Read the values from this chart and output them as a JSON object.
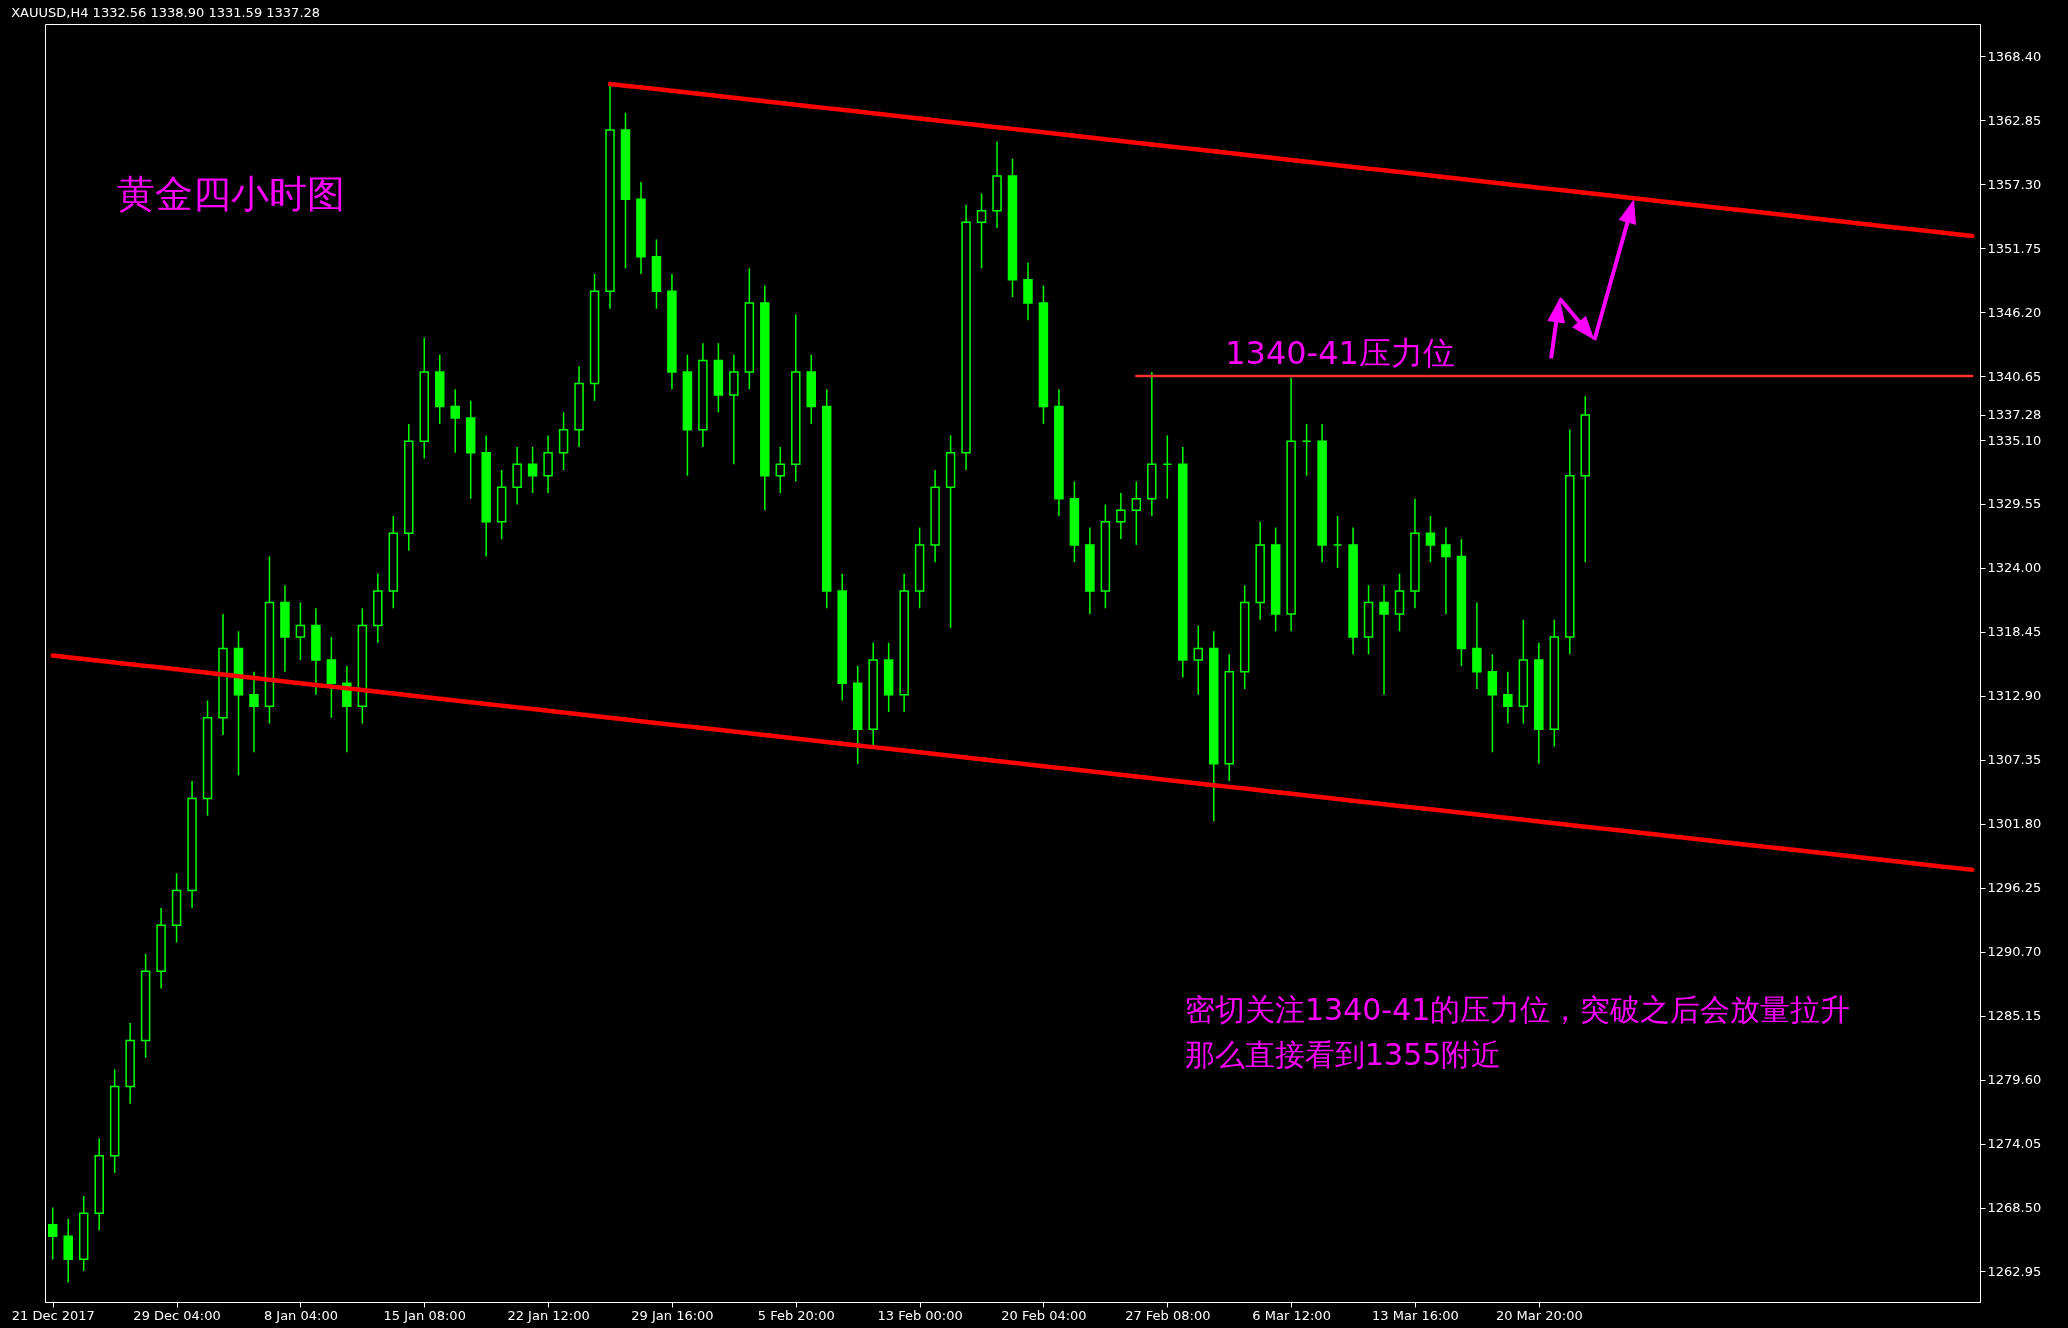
{
  "chart_data": {
    "type": "candlestick",
    "title": "XAUUSD,H4  1332.56 1338.90 1331.59 1337.28",
    "categories": [
      "21 Dec 2017",
      null,
      null,
      null,
      null,
      null,
      null,
      null,
      "29 Dec 04:00",
      null,
      null,
      null,
      null,
      null,
      null,
      null,
      "8 Jan 04:00",
      null,
      null,
      null,
      null,
      null,
      null,
      null,
      "15 Jan 08:00",
      null,
      null,
      null,
      null,
      null,
      null,
      null,
      "22 Jan 12:00",
      null,
      null,
      null,
      null,
      null,
      null,
      null,
      "29 Jan 16:00",
      null,
      null,
      null,
      null,
      null,
      null,
      null,
      "5 Feb 20:00",
      null,
      null,
      null,
      null,
      null,
      null,
      null,
      "13 Feb 00:00",
      null,
      null,
      null,
      null,
      null,
      null,
      null,
      "20 Feb 04:00",
      null,
      null,
      null,
      null,
      null,
      null,
      null,
      "27 Feb 08:00",
      null,
      null,
      null,
      null,
      null,
      null,
      null,
      "6 Mar 12:00",
      null,
      null,
      null,
      null,
      null,
      null,
      null,
      "13 Mar 16:00",
      null,
      null,
      null,
      null,
      null,
      null,
      null,
      "20 Mar 20:00",
      null,
      null,
      null,
      null,
      null,
      null,
      null,
      null,
      null,
      null,
      null,
      null,
      null,
      null,
      null,
      null,
      null,
      null,
      null,
      null,
      null,
      null,
      null,
      null,
      null,
      null,
      null,
      null
    ],
    "ylim": [
      1260.3,
      1371.2
    ],
    "yticks": [
      {
        "value": 1368.4,
        "label": "1368.40"
      },
      {
        "value": 1362.85,
        "label": "1362.85"
      },
      {
        "value": 1357.3,
        "label": "1357.30"
      },
      {
        "value": 1351.75,
        "label": "1351.75"
      },
      {
        "value": 1346.2,
        "label": "1346.20"
      },
      {
        "value": 1340.65,
        "label": "1340.65"
      },
      {
        "value": 1337.28,
        "label": "1337.28"
      },
      {
        "value": 1335.1,
        "label": "1335.10"
      },
      {
        "value": 1329.55,
        "label": "1329.55"
      },
      {
        "value": 1324,
        "label": "1324.00"
      },
      {
        "value": 1318.45,
        "label": "1318.45"
      },
      {
        "value": 1312.9,
        "label": "1312.90"
      },
      {
        "value": 1307.35,
        "label": "1307.35"
      },
      {
        "value": 1301.8,
        "label": "1301.80"
      },
      {
        "value": 1296.25,
        "label": "1296.25"
      },
      {
        "value": 1290.7,
        "label": "1290.70"
      },
      {
        "value": 1285.15,
        "label": "1285.15"
      },
      {
        "value": 1279.6,
        "label": "1279.60"
      },
      {
        "value": 1274.05,
        "label": "1274.05"
      },
      {
        "value": 1268.5,
        "label": "1268.50"
      },
      {
        "value": 1262.95,
        "label": "1262.95"
      }
    ],
    "series": [
      {
        "color": "#00ff00",
        "ohlc": [
          [
            1267,
            1268.5,
            1264,
            1266
          ],
          [
            1266,
            1267.5,
            1262,
            1264
          ],
          [
            1264,
            1269.5,
            1263,
            1268
          ],
          [
            1268,
            1274.5,
            1266.5,
            1273
          ],
          [
            1273,
            1280.5,
            1271.5,
            1279
          ],
          [
            1279,
            1284.5,
            1277.5,
            1283
          ],
          [
            1283,
            1290.5,
            1281.5,
            1289
          ],
          [
            1289,
            1294.5,
            1287.5,
            1293
          ],
          [
            1293,
            1297.5,
            1291.5,
            1296
          ],
          [
            1296,
            1305.5,
            1294.5,
            1304
          ],
          [
            1304,
            1312.5,
            1302.5,
            1311
          ],
          [
            1311,
            1320,
            1309.5,
            1317
          ],
          [
            1317,
            1318.5,
            1306,
            1313
          ],
          [
            1313,
            1315,
            1308,
            1312
          ],
          [
            1312,
            1325,
            1310.5,
            1321
          ],
          [
            1321,
            1322.5,
            1315,
            1318
          ],
          [
            1318,
            1321,
            1316,
            1319
          ],
          [
            1319,
            1320.5,
            1313,
            1316
          ],
          [
            1316,
            1318,
            1311,
            1314
          ],
          [
            1314,
            1315.5,
            1308,
            1312
          ],
          [
            1312,
            1320.5,
            1310.5,
            1319
          ],
          [
            1319,
            1323.5,
            1317.5,
            1322
          ],
          [
            1322,
            1328.5,
            1320.5,
            1327
          ],
          [
            1327,
            1336.5,
            1325.5,
            1335
          ],
          [
            1335,
            1344,
            1333.5,
            1341
          ],
          [
            1341,
            1342.5,
            1336.5,
            1338
          ],
          [
            1338,
            1339.5,
            1334,
            1337
          ],
          [
            1337,
            1338.5,
            1330,
            1334
          ],
          [
            1334,
            1335.5,
            1325,
            1328
          ],
          [
            1328,
            1332.5,
            1326.5,
            1331
          ],
          [
            1331,
            1334.5,
            1329.5,
            1333
          ],
          [
            1333,
            1334.5,
            1330.5,
            1332
          ],
          [
            1332,
            1335.5,
            1330.5,
            1334
          ],
          [
            1334,
            1337.5,
            1332.5,
            1336
          ],
          [
            1336,
            1341.5,
            1334.5,
            1340
          ],
          [
            1340,
            1349.5,
            1338.5,
            1348
          ],
          [
            1348,
            1366,
            1346.5,
            1362
          ],
          [
            1362,
            1363.5,
            1350,
            1356
          ],
          [
            1356,
            1357.5,
            1349.5,
            1351
          ],
          [
            1351,
            1352.5,
            1346.5,
            1348
          ],
          [
            1348,
            1349.5,
            1339.5,
            1341
          ],
          [
            1341,
            1342.5,
            1332,
            1336
          ],
          [
            1336,
            1343.5,
            1334.5,
            1342
          ],
          [
            1342,
            1343.5,
            1337.5,
            1339
          ],
          [
            1339,
            1342.5,
            1333,
            1341
          ],
          [
            1341,
            1350,
            1339.5,
            1347
          ],
          [
            1347,
            1348.5,
            1329,
            1332
          ],
          [
            1332,
            1334.5,
            1330.5,
            1333
          ],
          [
            1333,
            1346,
            1331.5,
            1341
          ],
          [
            1341,
            1342.5,
            1336.5,
            1338
          ],
          [
            1338,
            1339.5,
            1320.5,
            1322
          ],
          [
            1322,
            1323.5,
            1312.5,
            1314
          ],
          [
            1314,
            1315.5,
            1307,
            1310
          ],
          [
            1310,
            1317.5,
            1308.5,
            1316
          ],
          [
            1316,
            1317.5,
            1311.5,
            1313
          ],
          [
            1313,
            1323.5,
            1311.5,
            1322
          ],
          [
            1322,
            1327.5,
            1320.5,
            1326
          ],
          [
            1326,
            1332.5,
            1324.5,
            1331
          ],
          [
            1331,
            1335.5,
            1318.8,
            1334
          ],
          [
            1334,
            1355.5,
            1332.5,
            1354
          ],
          [
            1354,
            1356.5,
            1350,
            1355
          ],
          [
            1355,
            1361,
            1353.5,
            1358
          ],
          [
            1358,
            1359.5,
            1347.5,
            1349
          ],
          [
            1349,
            1350.5,
            1345.5,
            1347
          ],
          [
            1347,
            1348.5,
            1336.5,
            1338
          ],
          [
            1338,
            1339.5,
            1328.5,
            1330
          ],
          [
            1330,
            1331.5,
            1324.5,
            1326
          ],
          [
            1326,
            1327.5,
            1320,
            1322
          ],
          [
            1322,
            1329.5,
            1320.5,
            1328
          ],
          [
            1328,
            1330.5,
            1326.5,
            1329
          ],
          [
            1329,
            1331.5,
            1326,
            1330
          ],
          [
            1330,
            1341,
            1328.5,
            1333
          ],
          [
            1333,
            1335.5,
            1330,
            1333
          ],
          [
            1333,
            1334.5,
            1314.5,
            1316
          ],
          [
            1316,
            1319,
            1313,
            1317
          ],
          [
            1317,
            1318.5,
            1302,
            1307
          ],
          [
            1307,
            1316.5,
            1305.5,
            1315
          ],
          [
            1315,
            1322.5,
            1313.5,
            1321
          ],
          [
            1321,
            1328,
            1319.5,
            1326
          ],
          [
            1326,
            1327.5,
            1318.5,
            1320
          ],
          [
            1320,
            1340.5,
            1318.5,
            1335
          ],
          [
            1335,
            1336.5,
            1332,
            1335
          ],
          [
            1335,
            1336.5,
            1324.5,
            1326
          ],
          [
            1326,
            1328.5,
            1324,
            1326
          ],
          [
            1326,
            1327.5,
            1316.5,
            1318
          ],
          [
            1318,
            1322.5,
            1316.5,
            1321
          ],
          [
            1321,
            1322.5,
            1313,
            1320
          ],
          [
            1320,
            1323.5,
            1318.5,
            1322
          ],
          [
            1322,
            1330,
            1320.5,
            1327
          ],
          [
            1327,
            1328.5,
            1324.5,
            1326
          ],
          [
            1326,
            1327.5,
            1320,
            1325
          ],
          [
            1325,
            1326.5,
            1315.5,
            1317
          ],
          [
            1317,
            1321,
            1313.5,
            1315
          ],
          [
            1315,
            1316.5,
            1308,
            1313
          ],
          [
            1313,
            1315,
            1310.5,
            1312
          ],
          [
            1312,
            1319.5,
            1310.5,
            1316
          ],
          [
            1316,
            1317.5,
            1307,
            1310
          ],
          [
            1310,
            1319.5,
            1308.5,
            1318
          ],
          [
            1318,
            1336,
            1316.5,
            1332
          ],
          [
            1332,
            1338.9,
            1324.5,
            1337.28
          ],
          null,
          null,
          null,
          null,
          null,
          null,
          null,
          null,
          null,
          null,
          null,
          null,
          null,
          null,
          null,
          null,
          null,
          null,
          null,
          null,
          null,
          null,
          null,
          null,
          null
        ]
      },
      {
        "type": "line",
        "color": "#ff0000",
        "values": [
          null,
          null,
          null,
          null,
          null,
          null,
          null,
          null,
          null,
          null,
          null,
          null,
          null,
          null,
          null,
          null,
          null,
          null,
          null,
          null,
          null,
          null,
          null,
          null,
          null,
          null,
          null,
          null,
          null,
          null,
          null,
          null,
          null,
          null,
          null,
          null,
          1366,
          1365.85,
          1365.7,
          1365.55,
          1365.4,
          1365.25,
          1365.1,
          1364.95,
          1364.8,
          1364.65,
          1364.5,
          1364.35,
          1364.2,
          1364.05,
          1363.9,
          1363.75,
          1363.6,
          1363.45,
          1363.3,
          1363.15,
          1363,
          1362.85,
          1362.7,
          1362.55,
          1362.4,
          1362.25,
          1362.1,
          1361.95,
          1361.8,
          1361.65,
          1361.5,
          1361.35,
          1361.2,
          1361.05,
          1360.9,
          1360.75,
          1360.6,
          1360.45,
          1360.3,
          1360.15,
          1360,
          1359.85,
          1359.7,
          1359.55,
          1359.4,
          1359.25,
          1359.1,
          1358.95,
          1358.8,
          1358.65,
          1358.5,
          1358.35,
          1358.2,
          1358.05,
          1357.9,
          1357.75,
          1357.6,
          1357.45,
          1357.3,
          1357.15,
          1357,
          1356.85,
          1356.7,
          1356.55,
          1356.4,
          1356.25,
          1356.1,
          1355.95,
          1355.8,
          1355.65,
          1355.5,
          1355.35,
          1355.2,
          1355.05,
          1354.9,
          1354.75,
          1354.6,
          1354.45,
          1354.3,
          1354.15,
          1354,
          1353.85,
          1353.7,
          1353.55,
          1353.4,
          1353.25,
          1353.1,
          1352.95,
          1352.8
        ]
      },
      {
        "type": "line",
        "color": "#ff0000",
        "values": [
          1316.4,
          1316.25,
          1316.1,
          1315.95,
          1315.8,
          1315.65,
          1315.5,
          1315.35,
          1315.2,
          1315.05,
          1314.9,
          1314.75,
          1314.6,
          1314.45,
          1314.3,
          1314.15,
          1314,
          1313.85,
          1313.7,
          1313.55,
          1313.4,
          1313.25,
          1313.1,
          1312.95,
          1312.8,
          1312.65,
          1312.5,
          1312.35,
          1312.2,
          1312.05,
          1311.9,
          1311.75,
          1311.6,
          1311.45,
          1311.3,
          1311.15,
          1311,
          1310.85,
          1310.7,
          1310.55,
          1310.4,
          1310.25,
          1310.1,
          1309.95,
          1309.8,
          1309.65,
          1309.5,
          1309.35,
          1309.2,
          1309.05,
          1308.9,
          1308.75,
          1308.6,
          1308.45,
          1308.3,
          1308.15,
          1308,
          1307.85,
          1307.7,
          1307.55,
          1307.4,
          1307.25,
          1307.1,
          1306.95,
          1306.8,
          1306.65,
          1306.5,
          1306.35,
          1306.2,
          1306.05,
          1305.9,
          1305.75,
          1305.6,
          1305.45,
          1305.3,
          1305.15,
          1305,
          1304.85,
          1304.7,
          1304.55,
          1304.4,
          1304.25,
          1304.1,
          1303.95,
          1303.8,
          1303.65,
          1303.5,
          1303.35,
          1303.2,
          1303.05,
          1302.9,
          1302.75,
          1302.6,
          1302.45,
          1302.3,
          1302.15,
          1302,
          1301.85,
          1301.7,
          1301.55,
          1301.4,
          1301.25,
          1301.1,
          1300.95,
          1300.8,
          1300.65,
          1300.5,
          1300.35,
          1300.2,
          1300.05,
          1299.9,
          1299.75,
          1299.6,
          1299.45,
          1299.3,
          1299.15,
          1299,
          1298.85,
          1298.7,
          1298.55,
          1298.4,
          1298.25,
          1298.1,
          1297.95,
          1297.8
        ]
      },
      {
        "type": "line",
        "color": "#ff3030",
        "values": [
          null,
          null,
          null,
          null,
          null,
          null,
          null,
          null,
          null,
          null,
          null,
          null,
          null,
          null,
          null,
          null,
          null,
          null,
          null,
          null,
          null,
          null,
          null,
          null,
          null,
          null,
          null,
          null,
          null,
          null,
          null,
          null,
          null,
          null,
          null,
          null,
          null,
          null,
          null,
          null,
          null,
          null,
          null,
          null,
          null,
          null,
          null,
          null,
          null,
          null,
          null,
          null,
          null,
          null,
          null,
          null,
          null,
          null,
          null,
          null,
          null,
          null,
          null,
          null,
          null,
          null,
          null,
          null,
          null,
          null,
          1340.65,
          1340.65,
          1340.65,
          1340.65,
          1340.65,
          1340.65,
          1340.65,
          1340.65,
          1340.65,
          1340.65,
          1340.65,
          1340.65,
          1340.65,
          1340.65,
          1340.65,
          1340.65,
          1340.65,
          1340.65,
          1340.65,
          1340.65,
          1340.65,
          1340.65,
          1340.65,
          1340.65,
          1340.65,
          1340.65,
          1340.65,
          1340.65,
          1340.65,
          1340.65,
          1340.65,
          1340.65,
          1340.65,
          1340.65,
          1340.65,
          1340.65,
          1340.65,
          1340.65,
          1340.65,
          1340.65,
          1340.65,
          1340.65,
          1340.65,
          1340.65,
          1340.65,
          1340.65,
          1340.65,
          1340.65,
          1340.65,
          1340.65,
          1340.65,
          1340.65,
          1340.65,
          1340.65,
          1340.65
        ]
      }
    ],
    "annotations": [
      "黄金四小时图",
      {
        "text": "1340-41压力位",
        "y": 1340.65
      },
      "密切关注1340-41的压力位，突破之后会放量拉升",
      "那么直接看到1355附近"
    ]
  }
}
